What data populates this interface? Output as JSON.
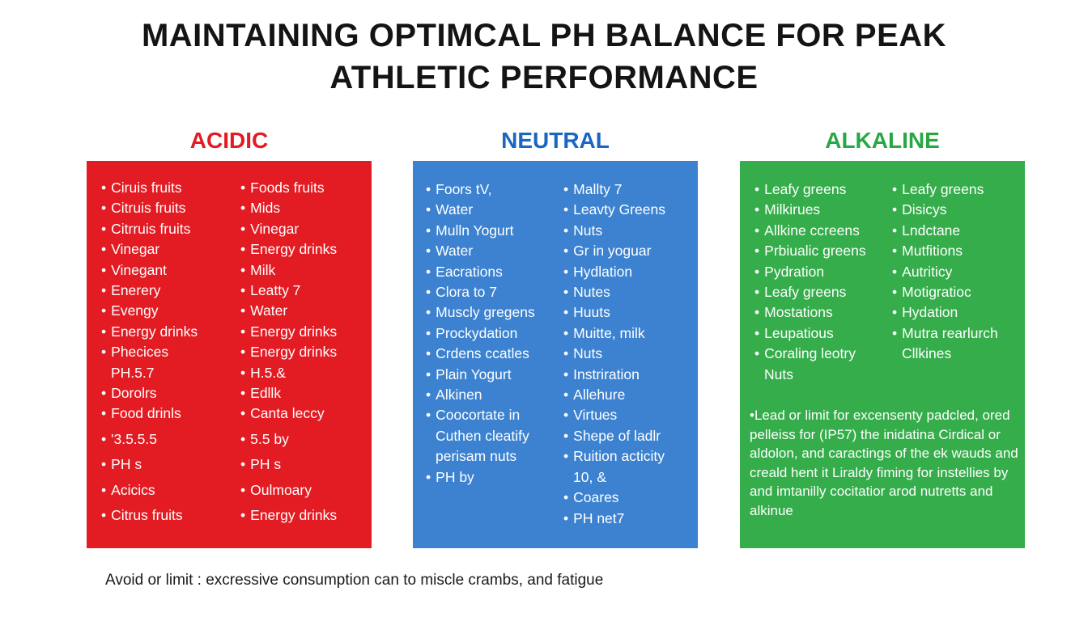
{
  "title": {
    "line1": "MAINTAINING OPTIMCAL PH BALANCE FOR PEAK",
    "line2": "ATHLETIC PERFORMANCE"
  },
  "acidic": {
    "heading": "ACIDIC",
    "color": "#e31b23",
    "left_items": [
      "Ciruis fruits",
      "Citruis fruits",
      "Citrruis fruits",
      "Vinegar",
      "Vinegant",
      "Enerery",
      "Evengy",
      "Energy drinks",
      "Phecices",
      "PH.5.7",
      "Dorolrs",
      "Food drinls",
      "'3.5.5.5",
      "PH s",
      "Acicics",
      "Citrus fruits"
    ],
    "right_items": [
      "Foods fruits",
      "Mids",
      "Vinegar",
      "Energy drinks",
      "Milk",
      "Leatty 7",
      "Water",
      "Energy drinks",
      "Energy drinks",
      "H.5.&",
      "Edllk",
      "Canta leccy",
      "5.5 by",
      "PH s",
      "Oulmoary",
      "Energy drinks"
    ]
  },
  "neutral": {
    "heading": "NEUTRAL",
    "color": "#1a66c2",
    "left_items": [
      "Foors tV,",
      "Water",
      "Mulln Yogurt",
      "Water",
      "Eacrations",
      "Clora to 7",
      "Muscly gregens",
      "Prockydation",
      "Crdens ccatles",
      "Plain Yogurt",
      "Alkinen",
      "Coocortate in",
      "Cuthen cleatify",
      "perisam nuts",
      "PH by"
    ],
    "right_items": [
      "Mallty 7",
      "Leavty Greens",
      "Nuts",
      "Gr in yoguar",
      "Hydlation",
      "Nutes",
      "Huuts",
      "Muitte, milk",
      "Nuts",
      "Instriration",
      "Allehure",
      "Virtues",
      "Shepe of ladlr",
      "Ruition acticity",
      "10, &",
      "Coares",
      "PH net7"
    ]
  },
  "alkaline": {
    "heading": "ALKALINE",
    "color": "#27a844",
    "left_items": [
      "Leafy greens",
      "Milkirues",
      "Allkine ccreens",
      "Prbiualic greens",
      "Pydration",
      "Leafy greens",
      "Mostations",
      "Leupatious",
      "Coraling leotry",
      "Nuts"
    ],
    "right_items": [
      "Leafy greens",
      "Disicys",
      "Lndctane",
      "Mutfitions",
      "Autriticy",
      "Motigratioc",
      "Hydation",
      "Mutra rearlurch",
      "Cllkines"
    ],
    "note": "•Lead or limit for excensenty padcled, ored pelleiss for (IP57) the inidatina Cirdical or aldolon, and caractings of the ek wauds and creald hent it Liraldy fiming for instellies by and imtanilly cocitatior arod nutretts and alkinue"
  },
  "footer": "Avoid or limit : excressive consumption can to miscle crambs, and fatigue"
}
